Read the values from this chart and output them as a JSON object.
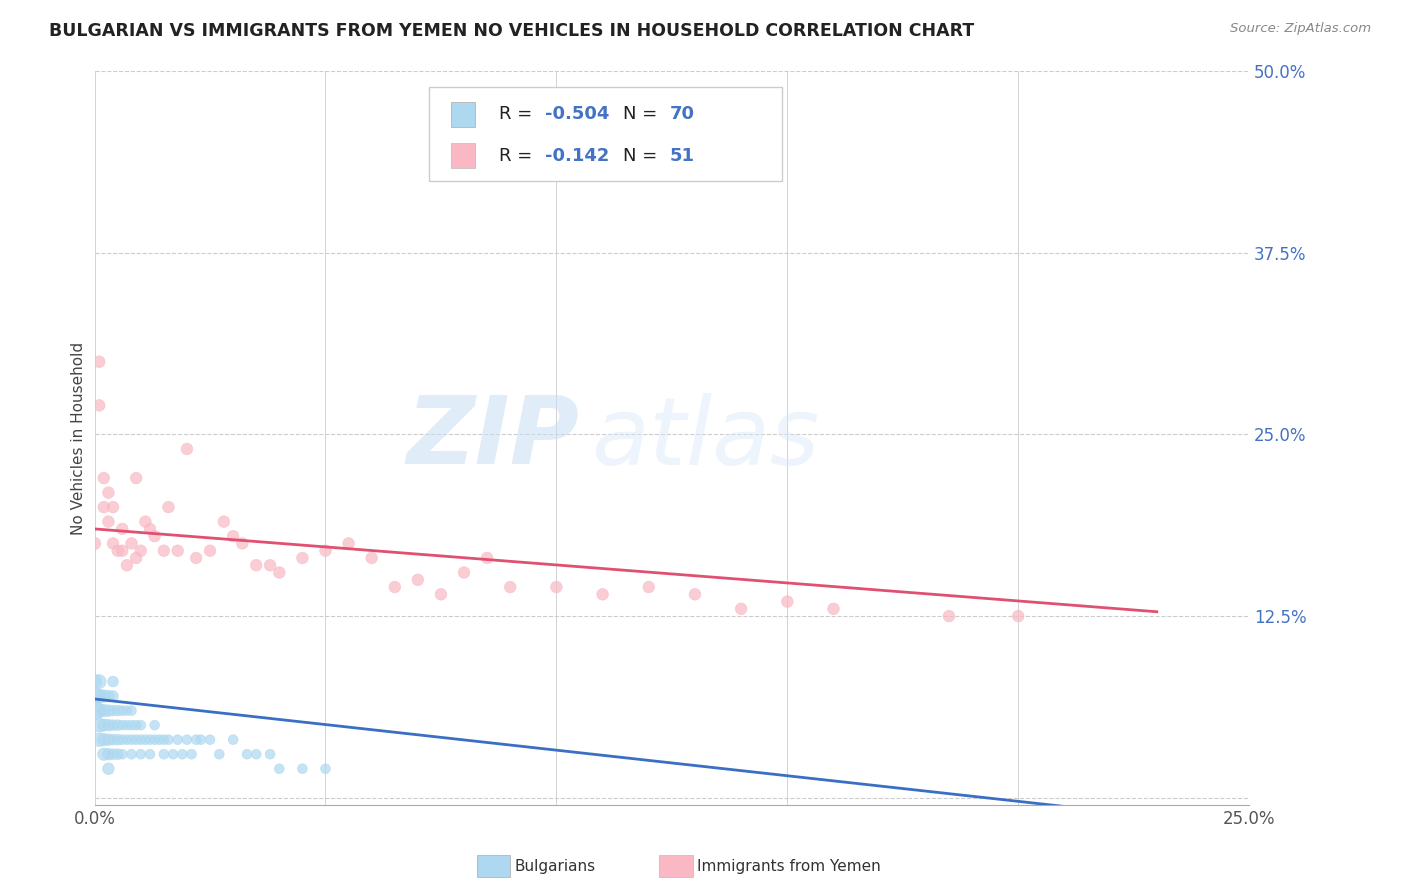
{
  "title": "BULGARIAN VS IMMIGRANTS FROM YEMEN NO VEHICLES IN HOUSEHOLD CORRELATION CHART",
  "source": "Source: ZipAtlas.com",
  "ylabel": "No Vehicles in Household",
  "xlim": [
    0.0,
    0.25
  ],
  "ylim": [
    -0.005,
    0.5
  ],
  "xticks": [
    0.0,
    0.05,
    0.1,
    0.15,
    0.2,
    0.25
  ],
  "yticks": [
    0.0,
    0.125,
    0.25,
    0.375,
    0.5
  ],
  "xtick_labels": [
    "0.0%",
    "",
    "",
    "",
    "",
    "25.0%"
  ],
  "ytick_labels": [
    "",
    "12.5%",
    "25.0%",
    "37.5%",
    "50.0%"
  ],
  "watermark_zip": "ZIP",
  "watermark_atlas": "atlas",
  "blue_color": "#ADD8F0",
  "pink_color": "#F9B8C4",
  "blue_line_color": "#3A6FC4",
  "pink_line_color": "#E05070",
  "blue_scatter_x": [
    0.0,
    0.0,
    0.0,
    0.001,
    0.001,
    0.001,
    0.001,
    0.001,
    0.002,
    0.002,
    0.002,
    0.002,
    0.002,
    0.003,
    0.003,
    0.003,
    0.003,
    0.003,
    0.003,
    0.004,
    0.004,
    0.004,
    0.004,
    0.004,
    0.004,
    0.005,
    0.005,
    0.005,
    0.005,
    0.006,
    0.006,
    0.006,
    0.006,
    0.007,
    0.007,
    0.007,
    0.008,
    0.008,
    0.008,
    0.008,
    0.009,
    0.009,
    0.01,
    0.01,
    0.01,
    0.011,
    0.012,
    0.012,
    0.013,
    0.013,
    0.014,
    0.015,
    0.015,
    0.016,
    0.017,
    0.018,
    0.019,
    0.02,
    0.021,
    0.022,
    0.023,
    0.025,
    0.027,
    0.03,
    0.033,
    0.035,
    0.038,
    0.04,
    0.045,
    0.05
  ],
  "blue_scatter_y": [
    0.06,
    0.07,
    0.08,
    0.04,
    0.05,
    0.06,
    0.07,
    0.08,
    0.03,
    0.04,
    0.05,
    0.06,
    0.07,
    0.02,
    0.03,
    0.04,
    0.05,
    0.06,
    0.07,
    0.03,
    0.04,
    0.05,
    0.06,
    0.07,
    0.08,
    0.03,
    0.04,
    0.05,
    0.06,
    0.03,
    0.04,
    0.05,
    0.06,
    0.04,
    0.05,
    0.06,
    0.03,
    0.04,
    0.05,
    0.06,
    0.04,
    0.05,
    0.03,
    0.04,
    0.05,
    0.04,
    0.03,
    0.04,
    0.04,
    0.05,
    0.04,
    0.03,
    0.04,
    0.04,
    0.03,
    0.04,
    0.03,
    0.04,
    0.03,
    0.04,
    0.04,
    0.04,
    0.03,
    0.04,
    0.03,
    0.03,
    0.03,
    0.02,
    0.02,
    0.02
  ],
  "blue_scatter_sizes": [
    200,
    150,
    100,
    100,
    100,
    100,
    100,
    100,
    80,
    80,
    80,
    80,
    80,
    70,
    70,
    70,
    70,
    70,
    70,
    60,
    60,
    60,
    60,
    60,
    60,
    60,
    60,
    60,
    60,
    50,
    50,
    50,
    50,
    50,
    50,
    50,
    50,
    50,
    50,
    50,
    50,
    50,
    50,
    50,
    50,
    50,
    50,
    50,
    50,
    50,
    50,
    50,
    50,
    50,
    50,
    50,
    50,
    50,
    50,
    50,
    50,
    50,
    50,
    50,
    50,
    50,
    50,
    50,
    50,
    50
  ],
  "pink_scatter_x": [
    0.0,
    0.001,
    0.001,
    0.002,
    0.002,
    0.003,
    0.003,
    0.004,
    0.004,
    0.005,
    0.006,
    0.006,
    0.007,
    0.008,
    0.009,
    0.009,
    0.01,
    0.011,
    0.012,
    0.013,
    0.015,
    0.016,
    0.018,
    0.02,
    0.022,
    0.025,
    0.028,
    0.03,
    0.032,
    0.035,
    0.038,
    0.04,
    0.045,
    0.05,
    0.055,
    0.06,
    0.065,
    0.07,
    0.075,
    0.08,
    0.085,
    0.09,
    0.1,
    0.11,
    0.12,
    0.13,
    0.14,
    0.15,
    0.16,
    0.185,
    0.2
  ],
  "pink_scatter_y": [
    0.175,
    0.27,
    0.3,
    0.2,
    0.22,
    0.19,
    0.21,
    0.175,
    0.2,
    0.17,
    0.185,
    0.17,
    0.16,
    0.175,
    0.165,
    0.22,
    0.17,
    0.19,
    0.185,
    0.18,
    0.17,
    0.2,
    0.17,
    0.24,
    0.165,
    0.17,
    0.19,
    0.18,
    0.175,
    0.16,
    0.16,
    0.155,
    0.165,
    0.17,
    0.175,
    0.165,
    0.145,
    0.15,
    0.14,
    0.155,
    0.165,
    0.145,
    0.145,
    0.14,
    0.145,
    0.14,
    0.13,
    0.135,
    0.13,
    0.125,
    0.125
  ],
  "pink_scatter_sizes": [
    80,
    70,
    70,
    70,
    70,
    70,
    70,
    70,
    70,
    70,
    70,
    70,
    70,
    70,
    70,
    70,
    70,
    70,
    70,
    70,
    70,
    70,
    70,
    70,
    70,
    70,
    70,
    70,
    70,
    70,
    70,
    70,
    70,
    70,
    70,
    70,
    70,
    70,
    70,
    70,
    70,
    70,
    70,
    70,
    70,
    70,
    70,
    70,
    70,
    70,
    70
  ],
  "blue_trend_x": [
    0.0,
    0.23
  ],
  "blue_trend_y": [
    0.068,
    -0.013
  ],
  "pink_trend_x": [
    0.0,
    0.23
  ],
  "pink_trend_y": [
    0.185,
    0.128
  ],
  "legend_color": "#4472C4",
  "grid_color": "#CCCCCC",
  "title_color": "#222222",
  "ytick_color": "#4472C4",
  "xtick_color": "#555555"
}
